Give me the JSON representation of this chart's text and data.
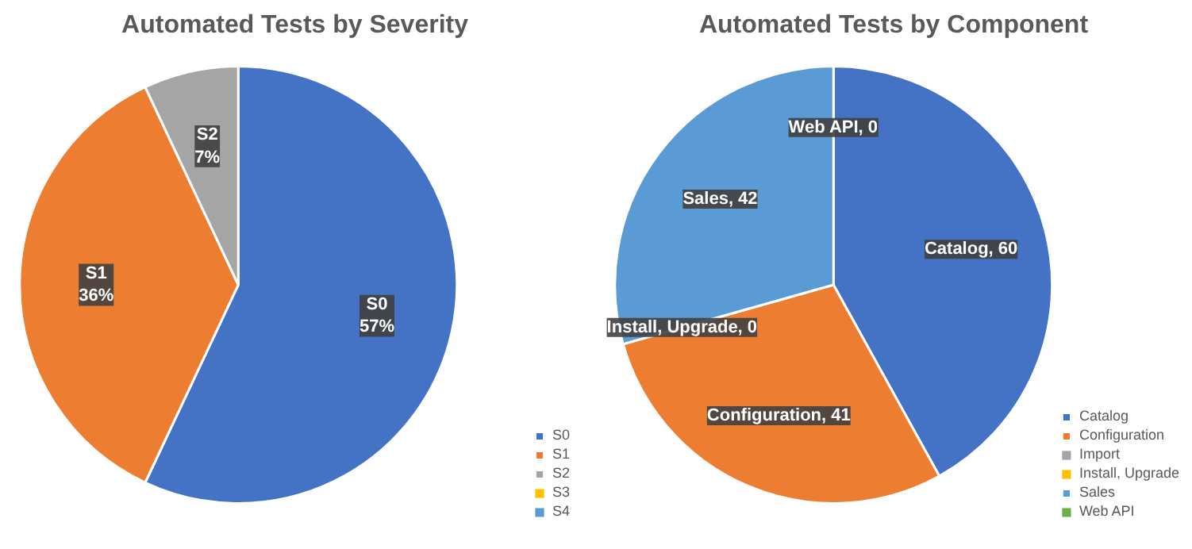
{
  "chart_data": [
    {
      "type": "pie",
      "title": "Automated Tests by  Severity",
      "categories": [
        "S0",
        "S1",
        "S2",
        "S3",
        "S4"
      ],
      "values": [
        57,
        36,
        7,
        0,
        0
      ],
      "colors": [
        "#4472c4",
        "#ed7d31",
        "#a5a5a5",
        "#ffc000",
        "#5b9bd5"
      ],
      "value_labels": [
        "S0\n57%",
        "S1\n36%",
        "S2\n7%",
        null,
        null
      ],
      "legend": "bottom right"
    },
    {
      "type": "pie",
      "title": "Automated Tests by Component",
      "categories": [
        "Catalog",
        "Configuration",
        "Import",
        "Install, Upgrade",
        "Sales",
        "Web API"
      ],
      "values": [
        60,
        41,
        0,
        0,
        42,
        0
      ],
      "colors": [
        "#4472c4",
        "#ed7d31",
        "#a5a5a5",
        "#ffc000",
        "#5b9bd5",
        "#70ad47"
      ],
      "value_labels": [
        "Catalog, 60",
        "Configuration, 41",
        null,
        "Install, Upgrade, 0",
        "Sales, 42",
        "Web API, 0"
      ],
      "legend": "bottom right"
    }
  ]
}
